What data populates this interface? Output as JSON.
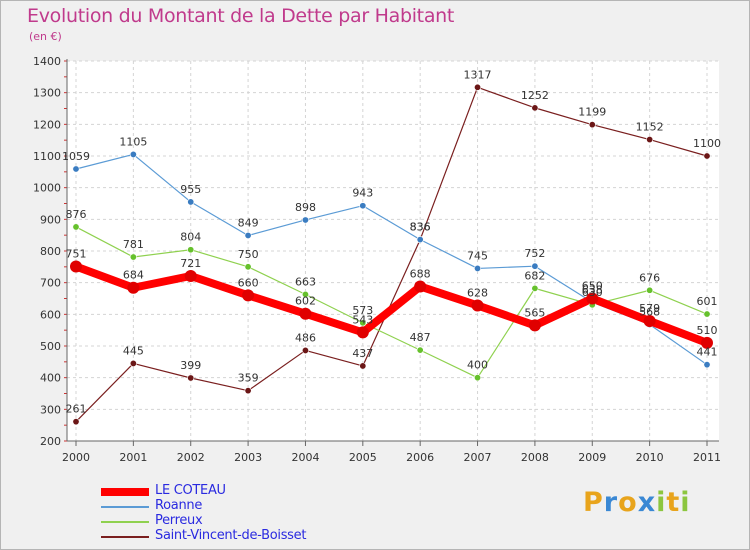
{
  "title": "Evolution du Montant de la Dette par Habitant",
  "unit": "(en €)",
  "logo": {
    "letters": [
      "P",
      "r",
      "o",
      "x",
      "i",
      "t",
      "i"
    ],
    "colors": [
      "#e8a41c",
      "#3a88d4",
      "#e8a41c",
      "#3a88d4",
      "#8cc63f",
      "#e8a41c",
      "#8cc63f"
    ]
  },
  "chart_data": {
    "type": "line",
    "title": "Evolution du Montant de la Dette par Habitant",
    "ylabel": "(en €)",
    "xlabel": "",
    "categories": [
      "2000",
      "2001",
      "2002",
      "2003",
      "2004",
      "2005",
      "2006",
      "2007",
      "2008",
      "2009",
      "2010",
      "2011"
    ],
    "ylim": [
      200,
      1400
    ],
    "yticks": [
      200,
      300,
      400,
      500,
      600,
      700,
      800,
      900,
      1000,
      1100,
      1200,
      1300,
      1400
    ],
    "yticks_labels": [
      "200",
      "300",
      "400",
      "500",
      "600",
      "700",
      "800",
      "900",
      "1000",
      "1100",
      "1200",
      "1300",
      "1400"
    ],
    "grid": true,
    "series": [
      {
        "name": "LE COTEAU",
        "color": "#ff0000",
        "marker": "#e00000",
        "thick": true,
        "values": [
          751,
          684,
          721,
          660,
          602,
          543,
          688,
          628,
          565,
          650,
          579,
          510
        ],
        "labels": [
          "751",
          "684",
          "721",
          "660",
          "602",
          "543",
          "688",
          "628",
          "565",
          "650",
          "579",
          "510"
        ]
      },
      {
        "name": "Roanne",
        "color": "#5b9bd5",
        "marker": "#3a7cc1",
        "values": [
          1059,
          1105,
          955,
          849,
          898,
          943,
          836,
          745,
          752,
          638,
          568,
          441
        ],
        "labels": [
          "1059",
          "1105",
          "955",
          "849",
          "898",
          "943",
          "836",
          "745",
          "752",
          "638",
          "568",
          "441"
        ]
      },
      {
        "name": "Perreux",
        "color": "#8fd14f",
        "marker": "#66c12c",
        "values": [
          876,
          781,
          804,
          750,
          663,
          573,
          487,
          400,
          682,
          630,
          676,
          601
        ],
        "labels": [
          "876",
          "781",
          "804",
          "750",
          "663",
          "573",
          "487",
          "400",
          "682",
          "630",
          "676",
          "601"
        ]
      },
      {
        "name": "Saint-Vincent-de-Boisset",
        "color": "#7a1f1f",
        "marker": "#6b1616",
        "values": [
          261,
          445,
          399,
          359,
          486,
          437,
          836,
          1317,
          1252,
          1199,
          1152,
          1100
        ],
        "labels": [
          "261",
          "445",
          "399",
          "359",
          "486",
          "437",
          "836",
          "1317",
          "1252",
          "1199",
          "1152",
          "1100"
        ]
      }
    ]
  }
}
